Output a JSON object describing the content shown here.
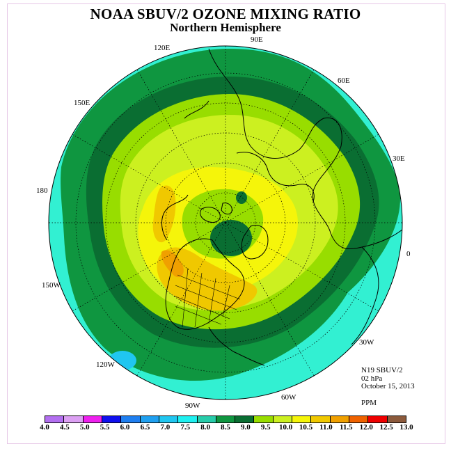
{
  "title": "NOAA SBUV/2 OZONE MIXING RATIO",
  "subtitle": "Northern Hemisphere",
  "longitude_labels": [
    "90E",
    "60E",
    "30E",
    "0",
    "30W",
    "60W",
    "90W",
    "120W",
    "150W",
    "180",
    "150E",
    "120E"
  ],
  "info": {
    "satellite": "N19 SBUV/2",
    "level": "02 hPa",
    "date": "October 15, 2013",
    "units": "PPM"
  },
  "colorbar": {
    "labels": [
      "4.0",
      "4.5",
      "5.0",
      "5.5",
      "6.0",
      "6.5",
      "7.0",
      "7.5",
      "8.0",
      "8.5",
      "9.0",
      "9.5",
      "10.0",
      "10.5",
      "11.0",
      "11.5",
      "12.0",
      "12.5",
      "13.0"
    ],
    "colors": [
      "#b36ff0",
      "#dca0f3",
      "#ee20ee",
      "#1010ee",
      "#1f7ff0",
      "#20a0f0",
      "#20c6f0",
      "#1ff0f0",
      "#27ccaa",
      "#0f9640",
      "#0a6e32",
      "#98dd00",
      "#ccf020",
      "#f5f50a",
      "#f0c800",
      "#f0a000",
      "#ef6200",
      "#ee0000",
      "#8c5a3c"
    ]
  },
  "field_colors": {
    "cyan": "#32f0d2",
    "green_8_5": "#0f9640",
    "green_9_0": "#0a6e32",
    "lime_9_5": "#98dd00",
    "yellowgreen_10": "#ccf020",
    "yellow_10_5": "#f5f50a",
    "orange_11": "#f0c800",
    "orange_11_5": "#f0a000"
  }
}
